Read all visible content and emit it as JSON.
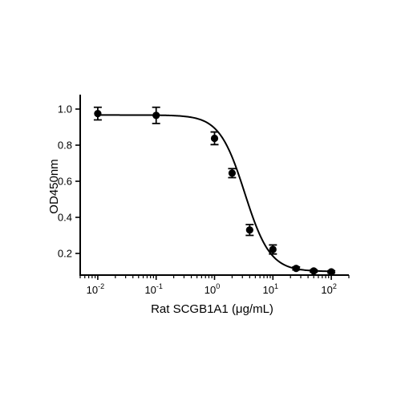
{
  "chart_data": {
    "type": "scatter",
    "title": "",
    "xlabel": "Rat SCGB1A1 (μg/mL)",
    "ylabel": "OD450nm",
    "x_scale": "log",
    "xlim": [
      0.005,
      200
    ],
    "ylim": [
      0.08,
      1.08
    ],
    "x_ticks": [
      {
        "value": 0.01,
        "base": "10",
        "exp": "-2"
      },
      {
        "value": 0.1,
        "base": "10",
        "exp": "-1"
      },
      {
        "value": 1,
        "base": "10",
        "exp": "0"
      },
      {
        "value": 10,
        "base": "10",
        "exp": "1"
      },
      {
        "value": 100,
        "base": "10",
        "exp": "2"
      }
    ],
    "y_ticks": [
      "0.2",
      "0.4",
      "0.6",
      "0.8",
      "1.0"
    ],
    "grid": false,
    "series": [
      {
        "points": [
          {
            "x": 0.01,
            "y": 0.975,
            "err": 0.035
          },
          {
            "x": 0.1,
            "y": 0.965,
            "err": 0.045
          },
          {
            "x": 1,
            "y": 0.838,
            "err": 0.035
          },
          {
            "x": 2,
            "y": 0.645,
            "err": 0.025
          },
          {
            "x": 4,
            "y": 0.33,
            "err": 0.03
          },
          {
            "x": 10,
            "y": 0.222,
            "err": 0.025
          },
          {
            "x": 25,
            "y": 0.117,
            "err": 0.008
          },
          {
            "x": 50,
            "y": 0.103,
            "err": 0.006
          },
          {
            "x": 100,
            "y": 0.098,
            "err": 0.006
          }
        ],
        "fit": {
          "model": "4PL",
          "bottom": 0.1,
          "top": 0.967,
          "ec50": 3.3,
          "hill": 2.0
        }
      }
    ]
  }
}
